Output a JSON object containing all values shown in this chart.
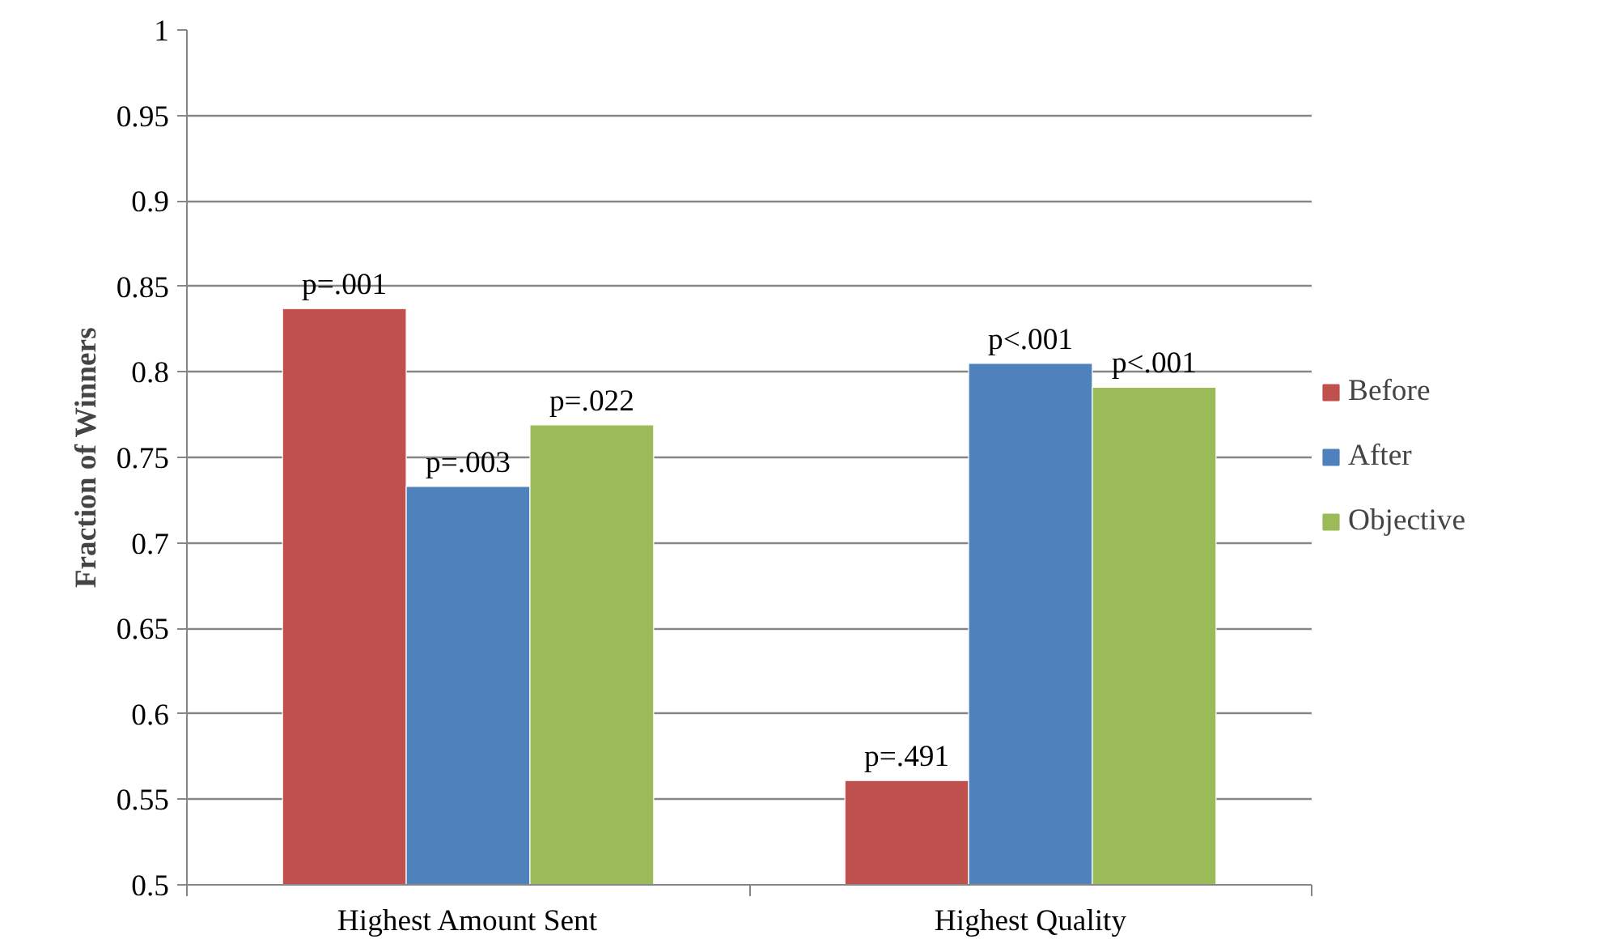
{
  "chart_data": {
    "type": "bar",
    "ylabel": "Fraction of Winners",
    "categories": [
      "Highest Amount Sent",
      "Highest Quality"
    ],
    "series": [
      {
        "name": "Before",
        "color": "#c0504d",
        "values": [
          0.837,
          0.561
        ]
      },
      {
        "name": "After",
        "color": "#4f81bd",
        "values": [
          0.733,
          0.805
        ]
      },
      {
        "name": "Objective",
        "color": "#9bbb59",
        "values": [
          0.769,
          0.791
        ]
      }
    ],
    "annotations": [
      "p=.001",
      "p=.003",
      "p=.022",
      "p=.491",
      "p<.001",
      "p<.001"
    ],
    "ylim": [
      0.5,
      1
    ],
    "yticks": [
      0.5,
      0.55,
      0.6,
      0.65,
      0.7,
      0.75,
      0.8,
      0.85,
      0.9,
      0.95,
      1
    ],
    "grid": "y",
    "legend": "right"
  }
}
